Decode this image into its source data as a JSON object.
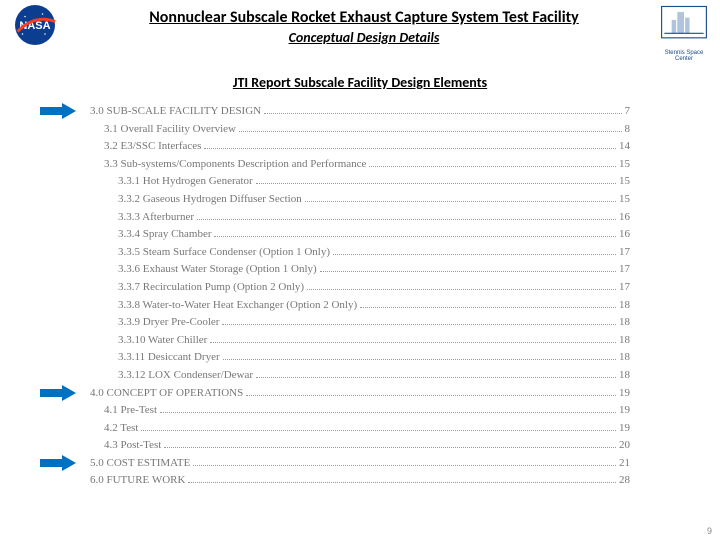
{
  "header": {
    "title": "Nonnuclear Subscale Rocket Exhaust Capture System Test Facility",
    "subtitle": "Conceptual Design Details",
    "ssc_caption": "Stennis Space Center"
  },
  "section_title": "JTI Report Subscale Facility Design Elements",
  "arrow_color": "#0070c0",
  "toc": [
    {
      "num": "3.0",
      "label": "SUB-SCALE FACILITY DESIGN",
      "page": "7",
      "indent": 0,
      "arrow": true
    },
    {
      "num": "3.1",
      "label": "Overall Facility Overview",
      "page": "8",
      "indent": 1
    },
    {
      "num": "3.2",
      "label": "E3/SSC Interfaces",
      "page": "14",
      "indent": 1
    },
    {
      "num": "3.3",
      "label": "Sub-systems/Components Description and Performance",
      "page": "15",
      "indent": 1
    },
    {
      "num": "3.3.1",
      "label": "Hot Hydrogen Generator",
      "page": "15",
      "indent": 2
    },
    {
      "num": "3.3.2",
      "label": "Gaseous Hydrogen Diffuser Section",
      "page": "15",
      "indent": 2
    },
    {
      "num": "3.3.3",
      "label": "Afterburner",
      "page": "16",
      "indent": 2
    },
    {
      "num": "3.3.4",
      "label": "Spray Chamber",
      "page": "16",
      "indent": 2
    },
    {
      "num": "3.3.5",
      "label": "Steam Surface Condenser (Option 1 Only)",
      "page": "17",
      "indent": 2
    },
    {
      "num": "3.3.6",
      "label": "Exhaust Water Storage (Option 1 Only)",
      "page": "17",
      "indent": 2
    },
    {
      "num": "3.3.7",
      "label": "Recirculation Pump (Option 2 Only)",
      "page": "17",
      "indent": 2
    },
    {
      "num": "3.3.8",
      "label": "Water-to-Water Heat Exchanger (Option 2 Only)",
      "page": "18",
      "indent": 2
    },
    {
      "num": "3.3.9",
      "label": "Dryer Pre-Cooler",
      "page": "18",
      "indent": 2
    },
    {
      "num": "3.3.10",
      "label": "Water Chiller",
      "page": "18",
      "indent": 2
    },
    {
      "num": "3.3.11",
      "label": "Desiccant Dryer",
      "page": "18",
      "indent": 2
    },
    {
      "num": "3.3.12",
      "label": "LOX Condenser/Dewar",
      "page": "18",
      "indent": 2
    },
    {
      "num": "4.0",
      "label": "CONCEPT OF OPERATIONS",
      "page": "19",
      "indent": 0,
      "arrow": true
    },
    {
      "num": "4.1",
      "label": "Pre-Test",
      "page": "19",
      "indent": 1
    },
    {
      "num": "4.2",
      "label": "Test",
      "page": "19",
      "indent": 1
    },
    {
      "num": "4.3",
      "label": "Post-Test",
      "page": "20",
      "indent": 1
    },
    {
      "num": "5.0",
      "label": "COST ESTIMATE",
      "page": "21",
      "indent": 0,
      "arrow": true
    },
    {
      "num": "6.0",
      "label": "FUTURE WORK",
      "page": "28",
      "indent": 0
    }
  ],
  "page_number": "9"
}
